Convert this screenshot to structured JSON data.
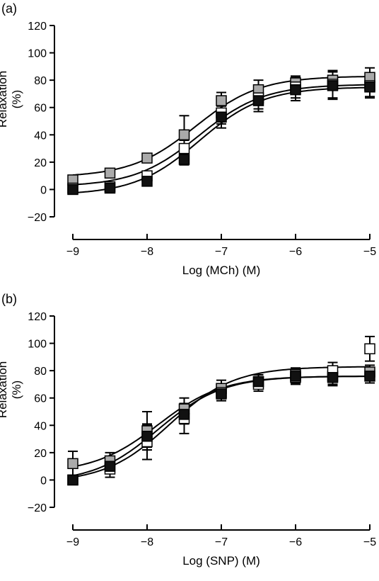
{
  "chart_data": [
    {
      "type": "scatter",
      "panel_label": "(a)",
      "xlabel": "Log (MCh) (M)",
      "ylabel": "Relaxation (%)",
      "xlim": [
        -9,
        -5
      ],
      "ylim": [
        -20,
        120
      ],
      "xticks": [
        -9,
        -8,
        -7,
        -6,
        -5
      ],
      "yticks": [
        -20,
        0,
        20,
        40,
        60,
        80,
        100,
        120
      ],
      "grid": false,
      "series": [
        {
          "color": "#aaaaaa",
          "x": [
            -9,
            -8.5,
            -8,
            -7.5,
            -7,
            -6.5,
            -6,
            -5.5,
            -5
          ],
          "y": [
            7,
            12,
            23,
            40,
            65,
            73,
            78,
            80,
            82
          ],
          "err": [
            3,
            3,
            3,
            14,
            6,
            7,
            4,
            7,
            7
          ],
          "fit": {
            "bottom": 9,
            "top": 83,
            "logEC50": -7.35,
            "hill": 1.0
          }
        },
        {
          "color": "#ffffff",
          "x": [
            -9,
            -8.5,
            -8,
            -7.5,
            -7,
            -6.5,
            -6,
            -5.5,
            -5
          ],
          "y": [
            1,
            2,
            10,
            30,
            56,
            67,
            75,
            77,
            76
          ],
          "err": [
            2,
            2,
            3,
            6,
            8,
            8,
            8,
            10,
            8
          ],
          "fit": {
            "bottom": 2,
            "top": 77,
            "logEC50": -7.3,
            "hill": 1.0
          }
        },
        {
          "color": "#111111",
          "x": [
            -9,
            -8.5,
            -8,
            -7.5,
            -7,
            -6.5,
            -6,
            -5.5,
            -5
          ],
          "y": [
            0,
            1,
            6,
            22,
            53,
            65,
            73,
            76,
            75
          ],
          "err": [
            2,
            2,
            3,
            4,
            8,
            8,
            8,
            10,
            8
          ],
          "fit": {
            "bottom": -4,
            "top": 75,
            "logEC50": -7.3,
            "hill": 1.0
          }
        }
      ]
    },
    {
      "type": "scatter",
      "panel_label": "(b)",
      "xlabel": "Log (SNP) (M)",
      "ylabel": "Relaxation (%)",
      "xlim": [
        -9,
        -5
      ],
      "ylim": [
        -20,
        120
      ],
      "xticks": [
        -9,
        -8,
        -7,
        -6,
        -5
      ],
      "yticks": [
        -20,
        0,
        20,
        40,
        60,
        80,
        100,
        120
      ],
      "grid": false,
      "series": [
        {
          "color": "#aaaaaa",
          "x": [
            -9,
            -8.5,
            -8,
            -7.5,
            -7,
            -6.5,
            -6,
            -5.5,
            -5
          ],
          "y": [
            12,
            14,
            36,
            52,
            67,
            72,
            75,
            76,
            79
          ],
          "err": [
            9,
            6,
            14,
            8,
            6,
            5,
            5,
            6,
            5
          ],
          "fit": {
            "bottom": 5,
            "top": 76,
            "logEC50": -7.85,
            "hill": 1.0
          }
        },
        {
          "color": "#ffffff",
          "x": [
            -9,
            -8.5,
            -8,
            -7.5,
            -7,
            -6.5,
            -6,
            -5.5,
            -5
          ],
          "y": [
            0,
            8,
            28,
            45,
            64,
            70,
            77,
            80,
            96
          ],
          "err": [
            3,
            6,
            13,
            11,
            6,
            5,
            5,
            6,
            9
          ],
          "fit": {
            "bottom": -2,
            "top": 83,
            "logEC50": -7.7,
            "hill": 1.0
          }
        },
        {
          "color": "#111111",
          "x": [
            -9,
            -8.5,
            -8,
            -7.5,
            -7,
            -6.5,
            -6,
            -5.5,
            -5
          ],
          "y": [
            0,
            10,
            32,
            48,
            63,
            72,
            76,
            75,
            76
          ],
          "err": [
            2,
            5,
            8,
            7,
            5,
            5,
            5,
            6,
            5
          ],
          "fit": {
            "bottom": -2,
            "top": 76,
            "logEC50": -7.85,
            "hill": 1.0
          }
        }
      ]
    }
  ]
}
